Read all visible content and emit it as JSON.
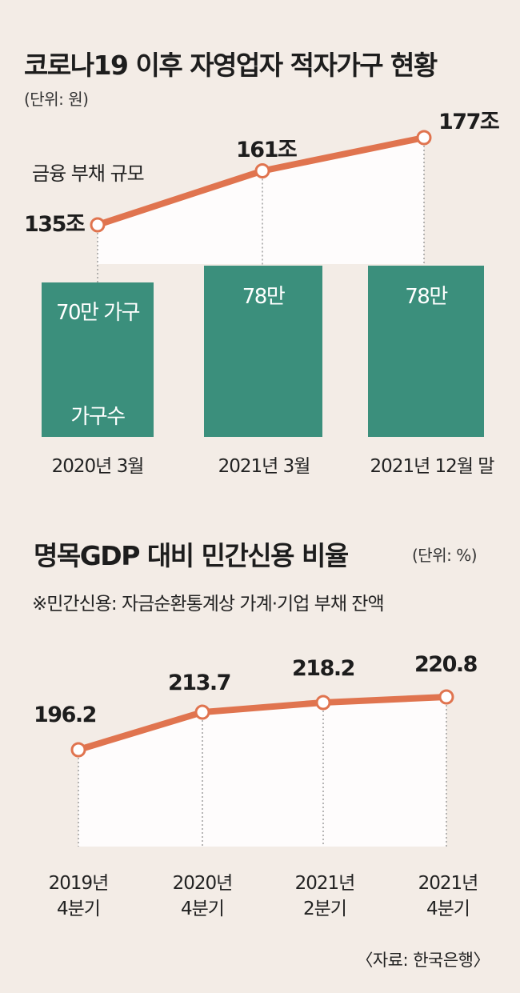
{
  "colors": {
    "background": "#f3ece6",
    "bar": "#3b8f7c",
    "line": "#e0744f",
    "marker_fill": "#ffffff"
  },
  "chart1": {
    "title": "코로나19 이후 자영업자 적자가구 현황",
    "unit": "(단위: 원)",
    "line_legend": "금융 부채 규모",
    "bar_legend": "가구수"
  },
  "chart2": {
    "title": "명목GDP 대비 민간신용 비율",
    "unit": "(단위: %)",
    "note": "※민간신용: 자금순환통계상 가계·기업 부채 잔액"
  },
  "source": "〈자료: 한국은행〉",
  "chart_data": [
    {
      "type": "bar",
      "title": "코로나19 이후 자영업자 적자가구 현황",
      "unit": "(단위: 원)",
      "categories": [
        "2020년 3월",
        "2021년 3월",
        "2021년 12월 말"
      ],
      "series": [
        {
          "name": "금융 부채 규모",
          "type": "line",
          "values": [
            135,
            161,
            177
          ],
          "labels": [
            "135조",
            "161조",
            "177조"
          ]
        },
        {
          "name": "가구수",
          "type": "bar",
          "values": [
            70,
            78,
            78
          ],
          "labels": [
            "70만 가구",
            "78만",
            "78만"
          ]
        }
      ]
    },
    {
      "type": "line",
      "title": "명목GDP 대비 민간신용 비율",
      "unit": "(단위: %)",
      "categories": [
        "2019년\n4분기",
        "2020년\n4분기",
        "2021년\n2분기",
        "2021년\n4분기"
      ],
      "category_lines": [
        [
          "2019년",
          "4분기"
        ],
        [
          "2020년",
          "4분기"
        ],
        [
          "2021년",
          "2분기"
        ],
        [
          "2021년",
          "4분기"
        ]
      ],
      "series": [
        {
          "values": [
            196.2,
            213.7,
            218.2,
            220.8
          ],
          "labels": [
            "196.2",
            "213.7",
            "218.2",
            "220.8"
          ]
        }
      ]
    }
  ]
}
